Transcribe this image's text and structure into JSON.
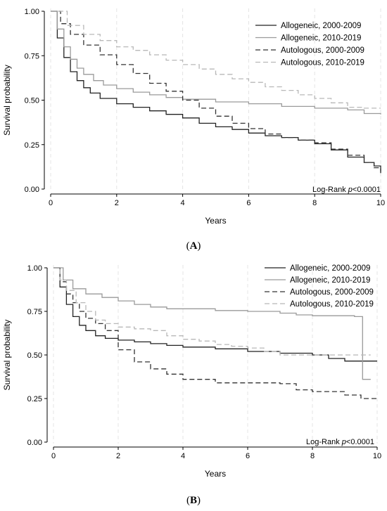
{
  "chart_data": [
    {
      "type": "line",
      "panel_label": "(A)",
      "panel_letter": "A",
      "xlabel": "Years",
      "ylabel": "Survival probability",
      "xlim": [
        0,
        10
      ],
      "ylim": [
        0,
        1
      ],
      "x_ticks": [
        "0",
        "2",
        "4",
        "6",
        "8",
        "10"
      ],
      "y_ticks": [
        "0.00",
        "0.25",
        "0.50",
        "0.75",
        "1.00"
      ],
      "grid": "dashed vertical",
      "legend_position": "top-right",
      "annotation": {
        "prefix": "Log-Rank ",
        "italic": "p",
        "suffix": "<0.0001"
      },
      "series": [
        {
          "name": "Allogeneic, 2000-2009",
          "color": "#222222",
          "dash": "solid",
          "x": [
            0,
            0.2,
            0.4,
            0.6,
            0.8,
            1.0,
            1.2,
            1.5,
            2,
            2.5,
            3,
            3.5,
            4,
            4.5,
            5,
            5.5,
            6,
            6.5,
            7,
            7.5,
            8,
            8.5,
            9,
            9.5,
            9.8,
            10
          ],
          "y": [
            1.0,
            0.85,
            0.74,
            0.66,
            0.61,
            0.57,
            0.54,
            0.51,
            0.48,
            0.46,
            0.44,
            0.42,
            0.4,
            0.37,
            0.35,
            0.335,
            0.315,
            0.3,
            0.29,
            0.275,
            0.255,
            0.22,
            0.18,
            0.15,
            0.13,
            0.09
          ]
        },
        {
          "name": "Allogeneic, 2010-2019",
          "color": "#9a9a9a",
          "dash": "solid",
          "x": [
            0,
            0.2,
            0.4,
            0.6,
            0.8,
            1.0,
            1.3,
            1.6,
            2,
            2.5,
            3,
            3.5,
            4,
            5,
            6,
            7,
            8,
            9,
            9.5,
            10
          ],
          "y": [
            1.0,
            0.9,
            0.8,
            0.73,
            0.68,
            0.645,
            0.61,
            0.585,
            0.565,
            0.545,
            0.53,
            0.515,
            0.505,
            0.49,
            0.48,
            0.465,
            0.455,
            0.445,
            0.425,
            0.42
          ]
        },
        {
          "name": "Autologous, 2000-2009",
          "color": "#333333",
          "dash": "7,4",
          "x": [
            0,
            0.3,
            0.6,
            1.0,
            1.5,
            2,
            2.5,
            3,
            3.5,
            4,
            4.5,
            5,
            5.5,
            6,
            6.5,
            7,
            7.5,
            8,
            8.5,
            9,
            9.5,
            9.8,
            10
          ],
          "y": [
            1.0,
            0.93,
            0.87,
            0.81,
            0.755,
            0.7,
            0.65,
            0.595,
            0.55,
            0.5,
            0.455,
            0.41,
            0.37,
            0.34,
            0.31,
            0.29,
            0.275,
            0.26,
            0.225,
            0.19,
            0.15,
            0.12,
            0.1
          ]
        },
        {
          "name": "Autologous, 2010-2019",
          "color": "#b8b8b8",
          "dash": "7,4",
          "x": [
            0,
            0.5,
            1.0,
            1.5,
            2,
            2.5,
            3,
            3.5,
            4,
            4.5,
            5,
            5.5,
            6,
            6.5,
            7,
            7.5,
            8,
            8.5,
            9,
            9.5,
            10
          ],
          "y": [
            1.0,
            0.92,
            0.87,
            0.835,
            0.8,
            0.78,
            0.755,
            0.725,
            0.7,
            0.675,
            0.645,
            0.62,
            0.6,
            0.575,
            0.555,
            0.53,
            0.51,
            0.485,
            0.46,
            0.455,
            0.455
          ]
        }
      ]
    },
    {
      "type": "line",
      "panel_label": "(B)",
      "panel_letter": "B",
      "xlabel": "Years",
      "ylabel": "Survival probability",
      "xlim": [
        0,
        10
      ],
      "ylim": [
        0,
        1
      ],
      "x_ticks": [
        "0",
        "2",
        "4",
        "6",
        "8",
        "10"
      ],
      "y_ticks": [
        "0.00",
        "0.25",
        "0.50",
        "0.75",
        "1.00"
      ],
      "grid": "dashed vertical",
      "legend_position": "top-right",
      "annotation": {
        "prefix": "Log-Rank ",
        "italic": "p",
        "suffix": "<0.0001"
      },
      "series": [
        {
          "name": "Allogeneic, 2000-2009",
          "color": "#222222",
          "dash": "solid",
          "x": [
            0,
            0.2,
            0.4,
            0.6,
            0.8,
            1.0,
            1.3,
            1.6,
            2,
            2.5,
            3,
            3.5,
            4,
            5,
            6,
            7,
            8,
            8.5,
            9,
            10
          ],
          "y": [
            1.0,
            0.89,
            0.79,
            0.72,
            0.67,
            0.64,
            0.61,
            0.595,
            0.585,
            0.575,
            0.565,
            0.555,
            0.545,
            0.535,
            0.52,
            0.51,
            0.5,
            0.48,
            0.465,
            0.465
          ]
        },
        {
          "name": "Allogeneic, 2010-2019",
          "color": "#9a9a9a",
          "dash": "solid",
          "x": [
            0,
            0.3,
            0.6,
            1.0,
            1.5,
            2,
            2.5,
            3,
            3.5,
            4,
            5,
            6,
            6.5,
            7,
            7.5,
            8,
            8.5,
            9,
            9.3,
            9.5,
            9.55,
            9.8
          ],
          "y": [
            1.0,
            0.93,
            0.88,
            0.85,
            0.83,
            0.81,
            0.79,
            0.775,
            0.765,
            0.765,
            0.755,
            0.75,
            0.75,
            0.74,
            0.73,
            0.725,
            0.725,
            0.725,
            0.72,
            0.72,
            0.36,
            0.36
          ]
        },
        {
          "name": "Autologous, 2000-2009",
          "color": "#333333",
          "dash": "7,4",
          "x": [
            0,
            0.2,
            0.4,
            0.6,
            0.8,
            1.0,
            1.3,
            1.6,
            2,
            2.5,
            3,
            3.5,
            4,
            5,
            6,
            7,
            7.5,
            8,
            8.5,
            9,
            9.5,
            10
          ],
          "y": [
            1.0,
            0.92,
            0.85,
            0.8,
            0.75,
            0.71,
            0.68,
            0.64,
            0.53,
            0.46,
            0.42,
            0.39,
            0.36,
            0.34,
            0.34,
            0.335,
            0.3,
            0.29,
            0.29,
            0.27,
            0.25,
            0.25
          ]
        },
        {
          "name": "Autologous, 2010-2019",
          "color": "#b8b8b8",
          "dash": "7,4",
          "x": [
            0,
            0.2,
            0.4,
            0.7,
            1.0,
            1.3,
            1.6,
            2,
            2.5,
            3,
            3.5,
            4,
            4.5,
            5,
            5.5,
            6,
            6.5,
            7,
            8,
            9,
            9.8
          ],
          "y": [
            1.0,
            0.93,
            0.87,
            0.8,
            0.75,
            0.7,
            0.68,
            0.66,
            0.65,
            0.64,
            0.61,
            0.59,
            0.58,
            0.56,
            0.55,
            0.54,
            0.52,
            0.5,
            0.5,
            0.5,
            0.5
          ]
        }
      ]
    }
  ]
}
